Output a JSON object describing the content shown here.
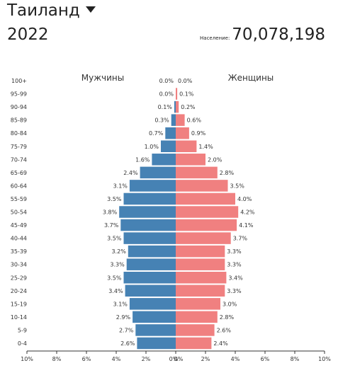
{
  "header": {
    "country": "Таиланд",
    "year": "2022",
    "population_label": "Население:",
    "population_value": "70,078,198"
  },
  "chart_data": {
    "type": "bar",
    "orientation": "horizontal",
    "subtype": "population-pyramid",
    "categories": [
      "100+",
      "95-99",
      "90-94",
      "85-89",
      "80-84",
      "75-79",
      "70-74",
      "65-69",
      "60-64",
      "55-59",
      "50-54",
      "45-49",
      "40-44",
      "35-39",
      "30-34",
      "25-29",
      "20-24",
      "15-19",
      "10-14",
      "5-9",
      "0-4"
    ],
    "series": [
      {
        "name": "Мужчины",
        "color": "#4682b4",
        "values": [
          0.0,
          0.0,
          0.1,
          0.3,
          0.7,
          1.0,
          1.6,
          2.4,
          3.1,
          3.5,
          3.8,
          3.7,
          3.5,
          3.2,
          3.3,
          3.5,
          3.4,
          3.1,
          2.9,
          2.7,
          2.6
        ],
        "labels": [
          "0.0%",
          "0.0%",
          "0.1%",
          "0.3%",
          "0.7%",
          "1.0%",
          "1.6%",
          "2.4%",
          "3.1%",
          "3.5%",
          "3.8%",
          "3.7%",
          "3.5%",
          "3.2%",
          "3.3%",
          "3.5%",
          "3.4%",
          "3.1%",
          "2.9%",
          "2.7%",
          "2.6%"
        ]
      },
      {
        "name": "Женщины",
        "color": "#f08080",
        "values": [
          0.0,
          0.1,
          0.2,
          0.6,
          0.9,
          1.4,
          2.0,
          2.8,
          3.5,
          4.0,
          4.2,
          4.1,
          3.7,
          3.3,
          3.3,
          3.4,
          3.3,
          3.0,
          2.8,
          2.6,
          2.4
        ],
        "labels": [
          "0.0%",
          "0.1%",
          "0.2%",
          "0.6%",
          "0.9%",
          "1.4%",
          "2.0%",
          "2.8%",
          "3.5%",
          "4.0%",
          "4.2%",
          "4.1%",
          "3.7%",
          "3.3%",
          "3.3%",
          "3.4%",
          "3.3%",
          "3.0%",
          "2.8%",
          "2.6%",
          "2.4%"
        ]
      }
    ],
    "xlim": [
      0,
      10
    ],
    "x_ticks_left": [
      "10%",
      "8%",
      "6%",
      "4%",
      "2%",
      "0%"
    ],
    "x_ticks_right": [
      "0%",
      "2%",
      "4%",
      "6%",
      "8%",
      "10%"
    ],
    "grid": false
  }
}
